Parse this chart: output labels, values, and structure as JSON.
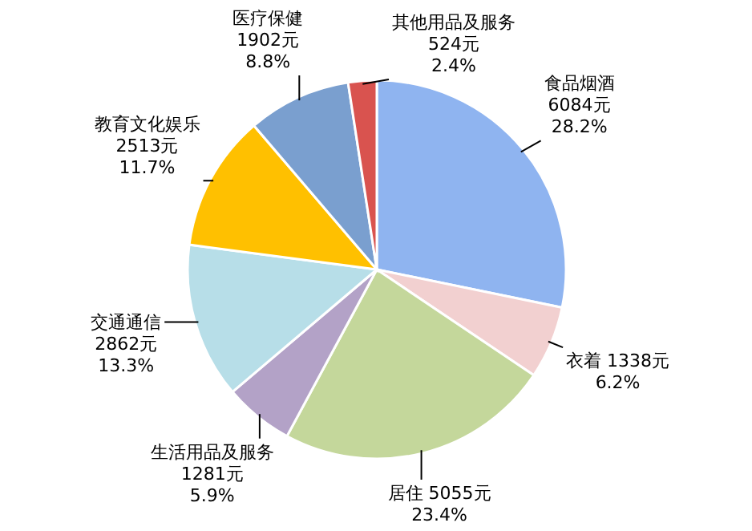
{
  "chart_data": {
    "type": "pie",
    "categories": [
      "食品烟酒",
      "衣着",
      "居住",
      "生活用品及服务",
      "交通通信",
      "教育文化娱乐",
      "医疗保健",
      "其他用品及服务"
    ],
    "values": [
      6084,
      1338,
      5055,
      1281,
      2862,
      2513,
      1902,
      524
    ],
    "value_labels": [
      "6084元\n28.2%",
      "1338元\n6.2%",
      "5055元\n23.4%",
      "1281元\n5.9%",
      "2862元\n13.3%",
      "2513元\n11.7%",
      "1902元\n8.8%",
      "524元\n2.4%"
    ],
    "colors": [
      "#8fb4f0",
      "#f2d0d0",
      "#c4d79b",
      "#b3a2c7",
      "#b7dee8",
      "#ffc000",
      "#7a9fcf",
      "#d9534f"
    ]
  }
}
